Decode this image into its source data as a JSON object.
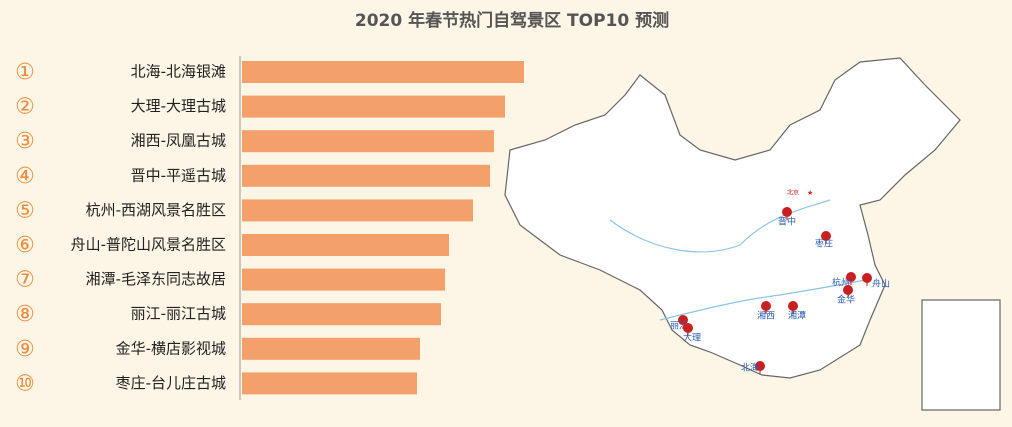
{
  "chart_data": {
    "type": "bar",
    "orientation": "horizontal",
    "title": "2020 年春节热门自驾景区 TOP10 预测",
    "ranks": [
      "①",
      "②",
      "③",
      "④",
      "⑤",
      "⑥",
      "⑦",
      "⑧",
      "⑨",
      "⑩"
    ],
    "categories": [
      "北海-北海银滩",
      "大理-大理古城",
      "湘西-凤凰古城",
      "晋中-平遥古城",
      "杭州-西湖风景名胜区",
      "舟山-普陀山风景名胜区",
      "湘潭-毛泽东同志故居",
      "丽江-丽江古城",
      "金华-横店影视城",
      "枣庄-台儿庄古城"
    ],
    "values": [
      282,
      263,
      252,
      248,
      231,
      207,
      203,
      199,
      178,
      175
    ],
    "xlim": [
      0,
      300
    ],
    "color": "#f4a06a",
    "map_labels": [
      "北京",
      "晋中",
      "枣庄",
      "杭州",
      "舟山",
      "金华",
      "湘西",
      "湘潭",
      "丽江",
      "大理",
      "北海"
    ]
  }
}
